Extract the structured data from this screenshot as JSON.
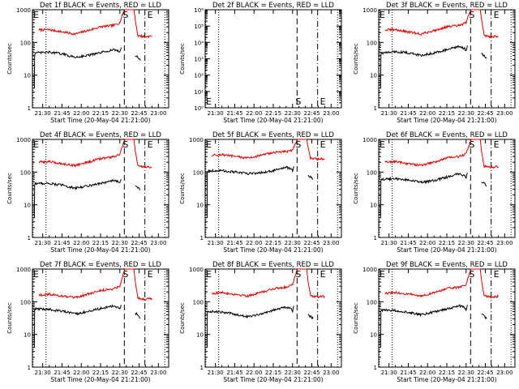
{
  "figure": {
    "x_tick_labels": [
      "21:30",
      "21:45",
      "22:00",
      "22:15",
      "22:30",
      "22:45",
      "23:00"
    ],
    "x_tick_values": [
      0,
      15,
      30,
      45,
      60,
      75,
      90
    ],
    "x_range": [
      -8,
      98
    ],
    "xlabel": "Start Time (20-May-04 21:21:00)",
    "ylabel": "Counts/sec",
    "colors": {
      "events": "#000000",
      "lld": "#e00000",
      "background": "#ffffff"
    },
    "markers": {
      "left_label": "E",
      "s_label": "S",
      "e_label": "E"
    },
    "marker_positions": {
      "dotted_start": -7.5,
      "dotted_mid": 2.5,
      "s_dashed": 63.5,
      "e_dashed": 79.5,
      "dotted_end": 95.0
    }
  },
  "chart_data": [
    {
      "type": "line",
      "title": "Det 1f BLACK = Events, RED = LLD",
      "yscale": "log",
      "ylim": [
        1,
        1000
      ],
      "y_tick_labels": [
        "1",
        "10",
        "100",
        "1000"
      ],
      "series": [
        {
          "name": "LLD",
          "color": "#e00000",
          "x": [
            -3,
            5,
            15,
            25,
            35,
            45,
            55,
            60,
            63,
            64,
            68,
            71,
            72,
            74,
            80,
            85
          ],
          "y": [
            240,
            245,
            210,
            180,
            230,
            300,
            330,
            400,
            900,
            1000,
            1000,
            1000,
            500,
            160,
            150,
            155
          ]
        },
        {
          "name": "Events",
          "color": "#000000",
          "x": [
            -6.5,
            -6.3,
            -6,
            -3,
            5,
            15,
            25,
            35,
            45,
            55,
            59,
            60,
            61
          ],
          "y": [
            4,
            40,
            48,
            48,
            50,
            45,
            35,
            40,
            48,
            60,
            55,
            50,
            70
          ]
        },
        {
          "name": "Events_tail",
          "color": "#000000",
          "x": [
            72,
            74,
            76
          ],
          "y": [
            40,
            35,
            28
          ]
        }
      ]
    },
    {
      "type": "line",
      "title": "Det 2f BLACK = Events, RED = LLD",
      "yscale": "log",
      "ylim": [
        1,
        1000000
      ],
      "y_tick_labels": [
        "10⁰",
        "10¹",
        "10²",
        "10³",
        "10⁴",
        "10⁵",
        "10⁶"
      ],
      "series": []
    },
    {
      "type": "line",
      "title": "Det 3f BLACK = Events, RED = LLD",
      "yscale": "log",
      "ylim": [
        1,
        1000
      ],
      "y_tick_labels": [
        "1",
        "10",
        "100",
        "1000"
      ],
      "series": [
        {
          "name": "LLD",
          "color": "#e00000",
          "x": [
            -3,
            5,
            15,
            25,
            35,
            45,
            55,
            60,
            63,
            64,
            68,
            71,
            72,
            74,
            80,
            85
          ],
          "y": [
            240,
            245,
            210,
            180,
            230,
            300,
            330,
            400,
            900,
            1000,
            1000,
            1000,
            500,
            160,
            150,
            155
          ]
        },
        {
          "name": "Events",
          "color": "#000000",
          "x": [
            -6.5,
            -6.3,
            -6,
            -3,
            5,
            15,
            25,
            35,
            45,
            55,
            59,
            60,
            61
          ],
          "y": [
            4,
            40,
            48,
            48,
            52,
            48,
            40,
            48,
            60,
            75,
            65,
            55,
            80
          ]
        },
        {
          "name": "Events_tail",
          "color": "#000000",
          "x": [
            72,
            74,
            76
          ],
          "y": [
            45,
            40,
            32
          ]
        }
      ]
    },
    {
      "type": "line",
      "title": "Det 4f BLACK = Events, RED = LLD",
      "yscale": "log",
      "ylim": [
        1,
        1000
      ],
      "y_tick_labels": [
        "1",
        "10",
        "100",
        "1000"
      ],
      "series": [
        {
          "name": "LLD",
          "color": "#e00000",
          "x": [
            -3,
            5,
            15,
            25,
            35,
            45,
            55,
            60,
            63,
            64,
            68,
            71,
            72,
            74,
            80,
            85
          ],
          "y": [
            200,
            210,
            180,
            160,
            200,
            260,
            290,
            350,
            800,
            1000,
            1000,
            1000,
            450,
            150,
            140,
            145
          ]
        },
        {
          "name": "Events",
          "color": "#000000",
          "x": [
            -6.5,
            -6.3,
            -6,
            -3,
            5,
            15,
            25,
            35,
            45,
            55,
            59,
            60,
            61
          ],
          "y": [
            4,
            38,
            45,
            45,
            45,
            40,
            32,
            38,
            45,
            55,
            50,
            45,
            60
          ]
        },
        {
          "name": "Events_tail",
          "color": "#000000",
          "x": [
            72,
            74,
            76
          ],
          "y": [
            38,
            33,
            28
          ]
        }
      ]
    },
    {
      "type": "line",
      "title": "Det 5f BLACK = Events, RED = LLD",
      "yscale": "log",
      "ylim": [
        1,
        1000
      ],
      "y_tick_labels": [
        "1",
        "10",
        "100",
        "1000"
      ],
      "series": [
        {
          "name": "LLD",
          "color": "#e00000",
          "x": [
            -3,
            5,
            15,
            25,
            35,
            45,
            55,
            60,
            63,
            64,
            68,
            71,
            72,
            74,
            80,
            85
          ],
          "y": [
            330,
            340,
            300,
            270,
            320,
            400,
            420,
            480,
            900,
            1000,
            1000,
            1000,
            600,
            260,
            250,
            255
          ]
        },
        {
          "name": "Events",
          "color": "#000000",
          "x": [
            -6.5,
            -6.3,
            -6,
            -3,
            5,
            15,
            25,
            35,
            45,
            55,
            59,
            60,
            61
          ],
          "y": [
            4,
            100,
            110,
            110,
            110,
            100,
            90,
            95,
            110,
            140,
            120,
            110,
            150
          ]
        },
        {
          "name": "Events_tail",
          "color": "#000000",
          "x": [
            72,
            74,
            76
          ],
          "y": [
            80,
            70,
            60
          ]
        }
      ]
    },
    {
      "type": "line",
      "title": "Det 6f BLACK = Events, RED = LLD",
      "yscale": "log",
      "ylim": [
        1,
        1000
      ],
      "y_tick_labels": [
        "1",
        "10",
        "100",
        "1000"
      ],
      "series": [
        {
          "name": "LLD",
          "color": "#e00000",
          "x": [
            -3,
            5,
            15,
            25,
            35,
            45,
            55,
            60,
            63,
            64,
            68,
            71,
            72,
            74,
            80,
            85
          ],
          "y": [
            200,
            210,
            180,
            160,
            200,
            270,
            300,
            360,
            800,
            1000,
            1000,
            1000,
            450,
            150,
            140,
            145
          ]
        },
        {
          "name": "Events",
          "color": "#000000",
          "x": [
            -6.5,
            -6.3,
            -6,
            -3,
            5,
            15,
            25,
            35,
            45,
            55,
            59,
            60,
            61
          ],
          "y": [
            4,
            55,
            60,
            60,
            62,
            58,
            48,
            55,
            70,
            90,
            75,
            65,
            95
          ]
        },
        {
          "name": "Events_tail",
          "color": "#000000",
          "x": [
            72,
            74,
            76
          ],
          "y": [
            50,
            45,
            38
          ]
        }
      ]
    },
    {
      "type": "line",
      "title": "Det 7f BLACK = Events, RED = LLD",
      "yscale": "log",
      "ylim": [
        1,
        1000
      ],
      "y_tick_labels": [
        "1",
        "10",
        "100",
        "1000"
      ],
      "series": [
        {
          "name": "LLD",
          "color": "#e00000",
          "x": [
            -3,
            5,
            15,
            25,
            35,
            45,
            55,
            60,
            63,
            64,
            68,
            71,
            72,
            74,
            80,
            85
          ],
          "y": [
            160,
            170,
            150,
            130,
            170,
            220,
            250,
            300,
            800,
            1000,
            1000,
            1000,
            400,
            130,
            120,
            125
          ]
        },
        {
          "name": "Events",
          "color": "#000000",
          "x": [
            -6.5,
            -6.3,
            -6,
            -3,
            5,
            15,
            25,
            35,
            45,
            55,
            59,
            60,
            61
          ],
          "y": [
            4,
            55,
            60,
            60,
            58,
            52,
            42,
            50,
            62,
            75,
            65,
            58,
            80
          ]
        },
        {
          "name": "Events_tail",
          "color": "#000000",
          "x": [
            72,
            74,
            76
          ],
          "y": [
            45,
            40,
            32
          ]
        }
      ]
    },
    {
      "type": "line",
      "title": "Det 8f BLACK = Events, RED = LLD",
      "yscale": "log",
      "ylim": [
        1,
        1000
      ],
      "y_tick_labels": [
        "1",
        "10",
        "100",
        "1000"
      ],
      "series": [
        {
          "name": "LLD",
          "color": "#e00000",
          "x": [
            -3,
            5,
            15,
            25,
            35,
            45,
            55,
            60,
            63,
            64,
            68,
            71,
            72,
            74,
            80,
            85
          ],
          "y": [
            180,
            190,
            170,
            150,
            190,
            250,
            280,
            340,
            850,
            1000,
            1000,
            1000,
            450,
            150,
            140,
            145
          ]
        },
        {
          "name": "Events",
          "color": "#000000",
          "x": [
            -6.5,
            -6.3,
            -6,
            -3,
            5,
            15,
            25,
            35,
            45,
            55,
            59,
            60,
            61
          ],
          "y": [
            4,
            45,
            50,
            50,
            48,
            42,
            35,
            42,
            55,
            70,
            60,
            52,
            75
          ]
        },
        {
          "name": "Events_tail",
          "color": "#000000",
          "x": [
            72,
            74,
            76
          ],
          "y": [
            40,
            35,
            30
          ]
        }
      ]
    },
    {
      "type": "line",
      "title": "Det 9f BLACK = Events, RED = LLD",
      "yscale": "log",
      "ylim": [
        1,
        1000
      ],
      "y_tick_labels": [
        "1",
        "10",
        "100",
        "1000"
      ],
      "series": [
        {
          "name": "LLD",
          "color": "#e00000",
          "x": [
            -3,
            5,
            15,
            25,
            35,
            45,
            55,
            60,
            63,
            64,
            68,
            71,
            72,
            74,
            80,
            85
          ],
          "y": [
            180,
            190,
            170,
            150,
            190,
            250,
            280,
            340,
            850,
            1000,
            1000,
            1000,
            450,
            150,
            140,
            145
          ]
        },
        {
          "name": "Events",
          "color": "#000000",
          "x": [
            -6.5,
            -6.3,
            -6,
            -3,
            5,
            15,
            25,
            35,
            45,
            55,
            59,
            60,
            61
          ],
          "y": [
            4,
            50,
            55,
            55,
            54,
            48,
            40,
            48,
            60,
            75,
            65,
            55,
            80
          ]
        },
        {
          "name": "Events_tail",
          "color": "#000000",
          "x": [
            72,
            74,
            76
          ],
          "y": [
            42,
            38,
            30
          ]
        }
      ]
    }
  ]
}
